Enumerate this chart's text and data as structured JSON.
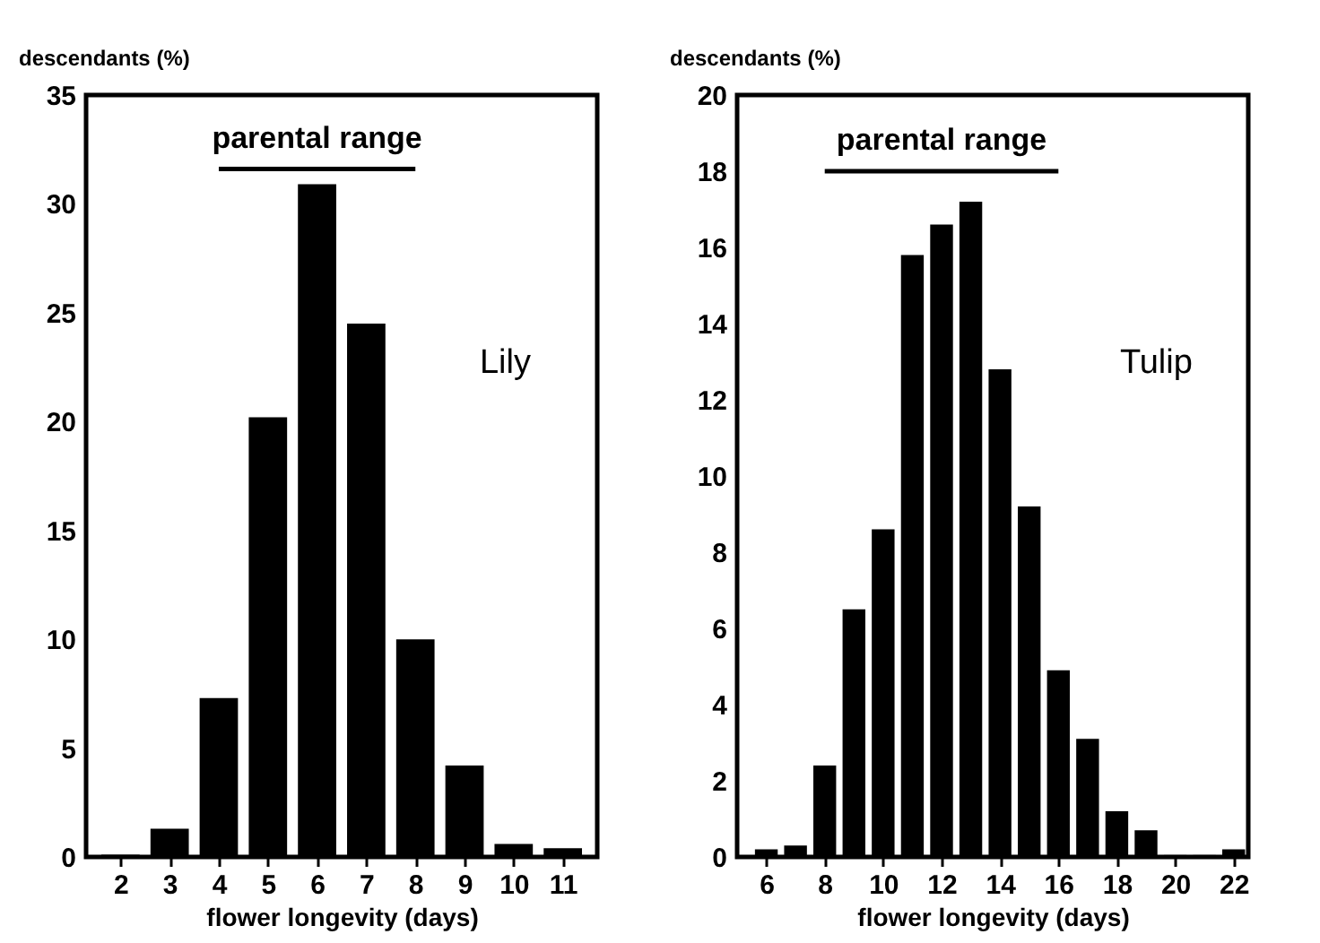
{
  "chart_data": [
    {
      "type": "bar",
      "xlabel": "flower longevity (days)",
      "ylabel": "descendants (%)",
      "x": [
        2,
        3,
        4,
        5,
        6,
        7,
        8,
        9,
        10,
        11
      ],
      "series": [
        {
          "color": "#000000",
          "values": [
            0.1,
            1.3,
            7.3,
            20.2,
            30.9,
            24.5,
            10.0,
            4.2,
            0.6,
            0.4
          ]
        },
        {
          "type": "line",
          "color": "#000000",
          "x": [
            4,
            8
          ],
          "values": [
            31.6,
            31.6
          ],
          "marker": "none"
        }
      ],
      "xlim": [
        1.3,
        11.7
      ],
      "xticks": [
        2,
        3,
        4,
        5,
        6,
        7,
        8,
        9,
        10,
        11
      ],
      "ylim": [
        0,
        35
      ],
      "yticks": [
        0,
        5,
        10,
        15,
        20,
        25,
        30,
        35
      ],
      "annotations": [
        {
          "text": "parental range",
          "x": 6,
          "y": 31.6
        },
        "Lily"
      ],
      "grid": false
    },
    {
      "type": "bar",
      "xlabel": "flower longevity (days)",
      "ylabel": "descendants (%)",
      "x": [
        6,
        7,
        8,
        9,
        10,
        11,
        12,
        13,
        14,
        15,
        16,
        17,
        18,
        19,
        20,
        21,
        22
      ],
      "series": [
        {
          "color": "#000000",
          "values": [
            0.2,
            0.3,
            2.4,
            6.5,
            8.6,
            15.8,
            16.6,
            17.2,
            12.8,
            9.2,
            4.9,
            3.1,
            1.2,
            0.7,
            0.05,
            0.05,
            0.2
          ]
        },
        {
          "type": "line",
          "color": "#000000",
          "x": [
            8,
            16
          ],
          "values": [
            18.0,
            18.0
          ],
          "marker": "none"
        }
      ],
      "xlim": [
        5.0,
        22.5
      ],
      "xticks": [
        6,
        8,
        10,
        12,
        14,
        16,
        18,
        20,
        22
      ],
      "ylim": [
        0,
        20
      ],
      "yticks": [
        0,
        2,
        4,
        6,
        8,
        10,
        12,
        14,
        16,
        18,
        20
      ],
      "annotations": [
        {
          "text": "parental range",
          "x": 12,
          "y": 18.0
        },
        "Tulip"
      ],
      "grid": false
    }
  ]
}
